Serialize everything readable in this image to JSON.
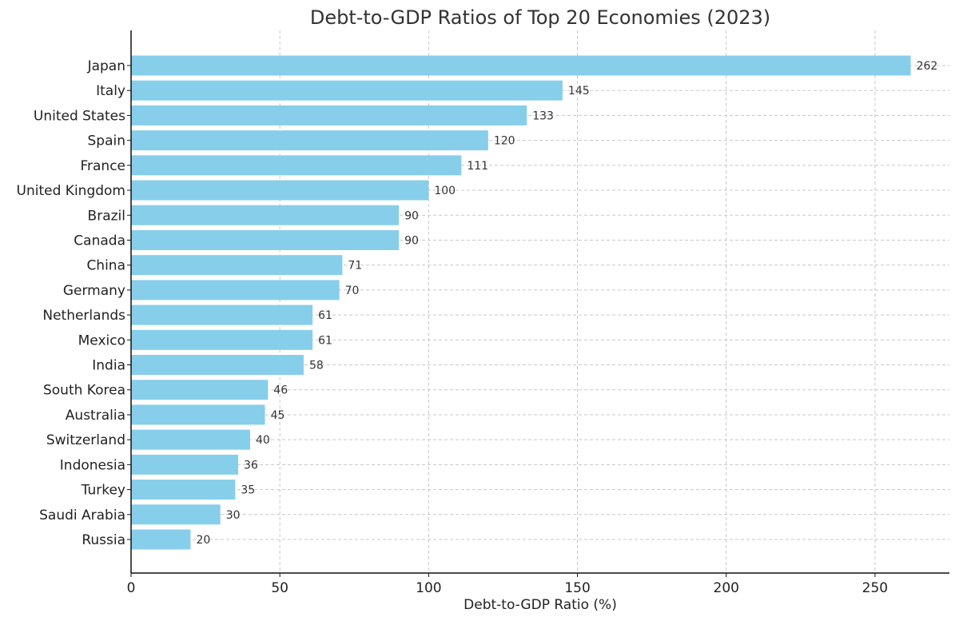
{
  "chart_data": {
    "type": "bar",
    "orientation": "horizontal",
    "title": "Debt-to-GDP Ratios of Top 20 Economies (2023)",
    "xlabel": "Debt-to-GDP Ratio (%)",
    "ylabel": "",
    "categories": [
      "Japan",
      "Italy",
      "United States",
      "Spain",
      "France",
      "United Kingdom",
      "Brazil",
      "Canada",
      "China",
      "Germany",
      "Netherlands",
      "Mexico",
      "India",
      "South Korea",
      "Australia",
      "Switzerland",
      "Indonesia",
      "Turkey",
      "Saudi Arabia",
      "Russia"
    ],
    "values": [
      262,
      145,
      133,
      120,
      111,
      100,
      90,
      90,
      71,
      70,
      61,
      61,
      58,
      46,
      45,
      40,
      36,
      35,
      30,
      20
    ],
    "data_labels": [
      "262",
      "145",
      "133",
      "120",
      "111",
      "100",
      "90",
      "90",
      "71",
      "70",
      "61",
      "61",
      "58",
      "46",
      "45",
      "40",
      "36",
      "35",
      "30",
      "20"
    ],
    "xlim": [
      0,
      275
    ],
    "xticks": [
      0,
      50,
      100,
      150,
      200,
      250
    ],
    "xtick_labels": [
      "0",
      "50",
      "100",
      "150",
      "200",
      "250"
    ],
    "grid": true,
    "grid_style": "dashed",
    "bar_color": "#87ceeb",
    "legend": null
  }
}
